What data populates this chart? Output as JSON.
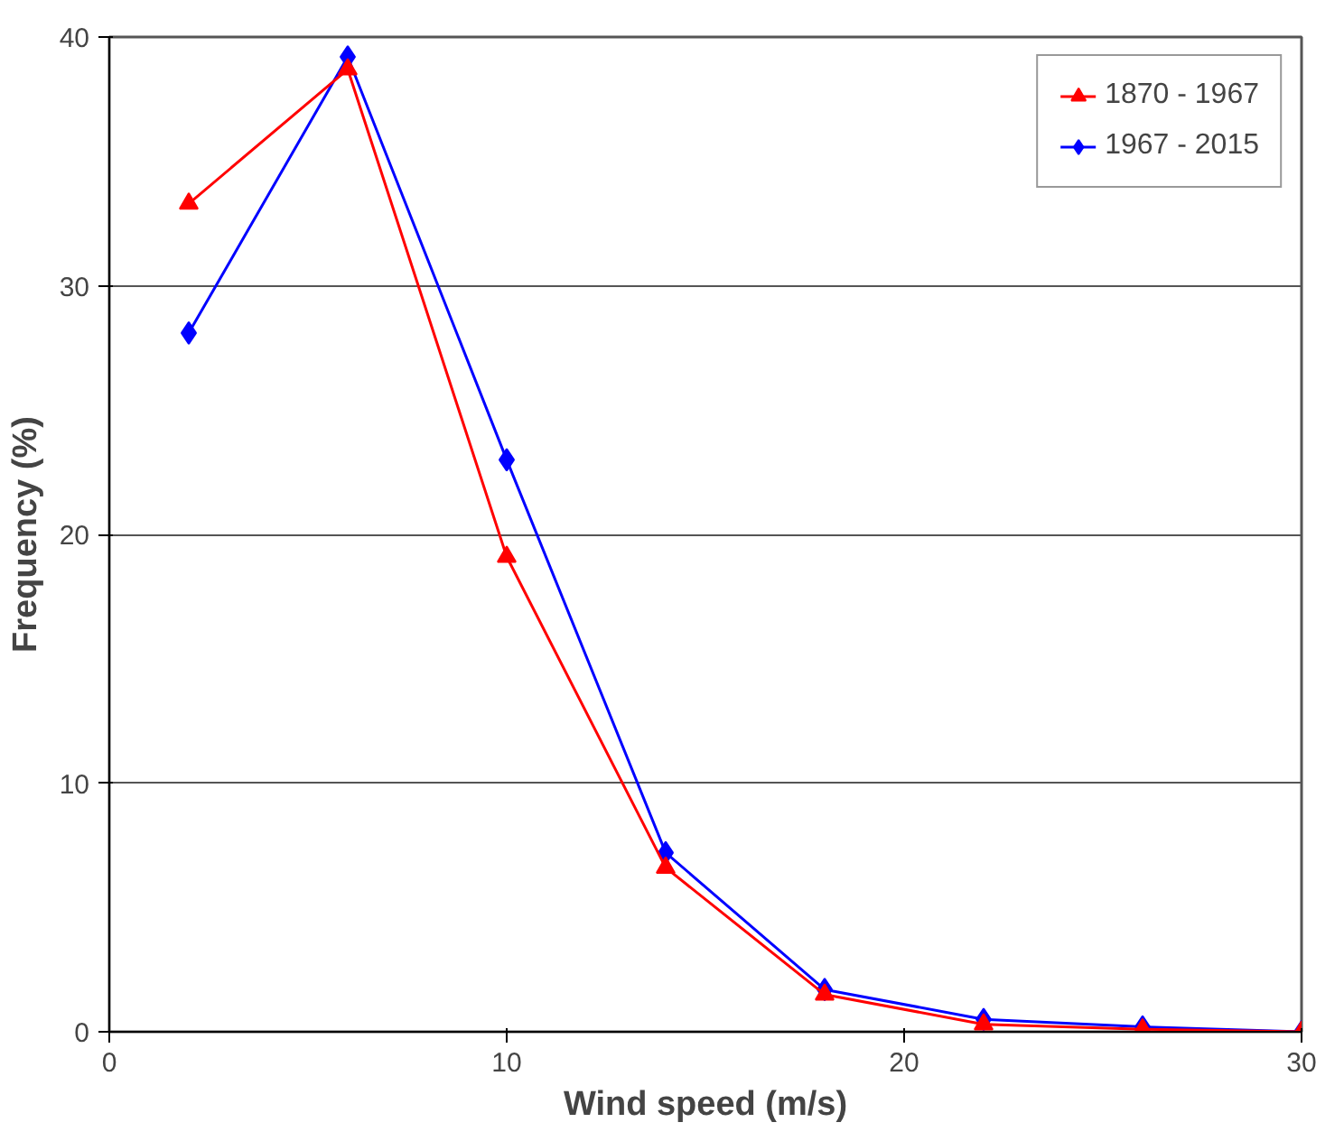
{
  "chart_data": {
    "type": "line",
    "xlabel": "Wind speed (m/s)",
    "ylabel": "Frequency (%)",
    "x": [
      2,
      6,
      10,
      14,
      18,
      22,
      26,
      30
    ],
    "series": [
      {
        "name": "1870 - 1967",
        "color": "#ff0000",
        "marker": "triangle",
        "values": [
          33.3,
          38.7,
          19.1,
          6.6,
          1.5,
          0.3,
          0.1,
          0
        ]
      },
      {
        "name": "1967 - 2015",
        "color": "#0000ff",
        "marker": "diamond",
        "values": [
          28.1,
          39.2,
          23.0,
          7.2,
          1.7,
          0.5,
          0.2,
          0
        ]
      }
    ],
    "xlim": [
      0,
      30
    ],
    "xticks": [
      0,
      10,
      20,
      30
    ],
    "ylim": [
      0,
      40
    ],
    "yticks": [
      0,
      10,
      20,
      30,
      40
    ],
    "grid": "y",
    "legend": "top right",
    "line_style": "solid"
  }
}
